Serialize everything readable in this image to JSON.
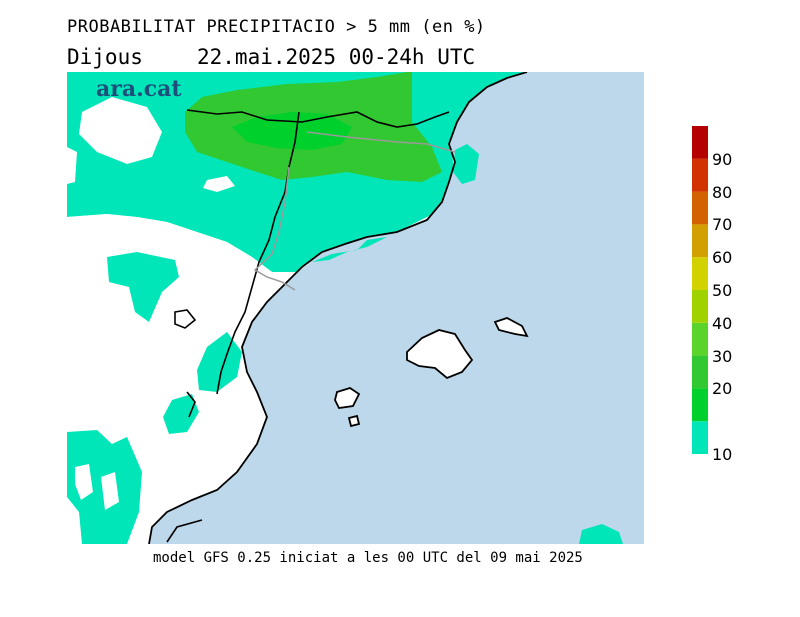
{
  "header": {
    "title": "PROBABILITAT PRECIPITACIO > 5 mm (en %)",
    "day": "Dijous",
    "date": "22.mai.2025 00-24h UTC"
  },
  "brand": "ara.cat",
  "footer": "model GFS 0.25 iniciat a les 00 UTC del 09 mai 2025",
  "legend": {
    "labels": [
      "10",
      "20",
      "30",
      "40",
      "50",
      "60",
      "70",
      "80",
      "90"
    ],
    "colors": [
      "#00e6b8",
      "#00d02c",
      "#32c832",
      "#5ad32a",
      "#a0d200",
      "#d2d200",
      "#d2a000",
      "#d26400",
      "#d23200",
      "#b40000"
    ]
  },
  "map": {
    "sea_color": "#bcd8ea",
    "land_color": "#ffffff",
    "low_prob_color": "#00e6b8",
    "mid_prob_color": "#32c832"
  }
}
